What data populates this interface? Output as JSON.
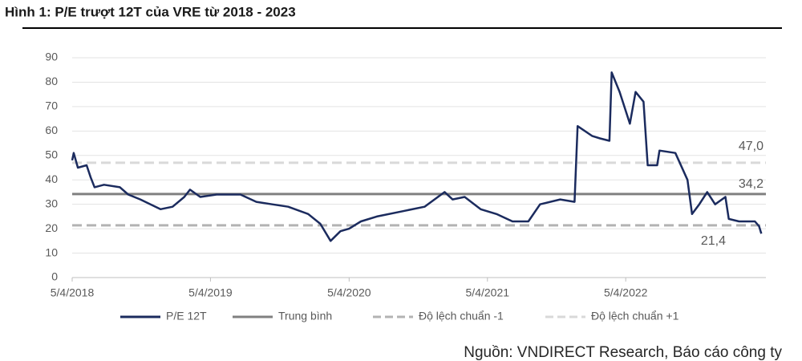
{
  "chart_data": {
    "type": "line",
    "title": "Hình 1: P/E trượt 12T của VRE từ 2018 - 2023",
    "source": "Nguồn: VNDIRECT Research, Báo cáo công ty",
    "x": [
      "2018-04-05",
      "2018-04-09",
      "2018-04-20",
      "2018-05-13",
      "2018-05-24",
      "2018-06-03",
      "2018-06-28",
      "2018-08-09",
      "2018-08-31",
      "2018-10-02",
      "2018-11-24",
      "2018-12-26",
      "2019-01-26",
      "2019-02-10",
      "2019-03-09",
      "2019-04-21",
      "2019-06-23",
      "2019-08-04",
      "2019-09-15",
      "2019-10-27",
      "2019-12-19",
      "2020-01-20",
      "2020-02-16",
      "2020-03-13",
      "2020-04-05",
      "2020-05-06",
      "2020-06-17",
      "2020-08-19",
      "2020-10-21",
      "2020-12-13",
      "2021-01-03",
      "2021-02-04",
      "2021-03-18",
      "2021-04-29",
      "2021-06-10",
      "2021-07-22",
      "2021-08-22",
      "2021-10-14",
      "2021-11-21",
      "2021-11-29",
      "2022-01-06",
      "2022-01-27",
      "2022-02-21",
      "2022-02-27",
      "2022-03-20",
      "2022-04-16",
      "2022-05-01",
      "2022-05-22",
      "2022-06-02",
      "2022-06-27",
      "2022-07-03",
      "2022-08-14",
      "2022-09-15",
      "2022-09-27",
      "2022-10-16",
      "2022-11-06",
      "2022-11-27",
      "2022-12-24",
      "2023-01-02",
      "2023-01-29",
      "2023-03-12",
      "2023-03-23",
      "2023-03-29"
    ],
    "series": [
      {
        "name": "P/E 12T",
        "color": "#1b2b5e",
        "values": [
          48,
          51,
          45,
          46,
          41,
          37,
          38,
          37,
          34,
          32,
          28,
          29,
          33,
          36,
          33,
          34,
          34,
          31,
          30,
          29,
          26,
          22,
          15,
          19,
          20,
          23,
          25,
          27,
          29,
          35,
          32,
          33,
          28,
          26,
          23,
          23,
          30,
          32,
          31,
          62,
          58,
          57,
          56,
          84,
          76,
          63,
          76,
          72,
          46,
          46,
          52,
          51,
          40,
          26,
          30,
          35,
          30,
          33,
          24,
          23,
          23,
          21,
          18
        ]
      }
    ],
    "reference_lines": [
      {
        "name": "Trung bình",
        "value": 34.2,
        "value_label": "34,2",
        "color": "#808080",
        "dashed": false
      },
      {
        "name": "Độ lệch chuẩn -1",
        "value": 21.4,
        "value_label": "21,4",
        "color": "#b3b3b3",
        "dashed": true
      },
      {
        "name": "Độ lệch chuẩn +1",
        "value": 47.0,
        "value_label": "47,0",
        "color": "#d9d9d9",
        "dashed": true
      }
    ],
    "xlim": [
      "2018-04-05",
      "2023-04-10"
    ],
    "xticks": [
      {
        "value": "2018-04-05",
        "label": "5/4/2018"
      },
      {
        "value": "2019-04-05",
        "label": "5/4/2019"
      },
      {
        "value": "2020-04-05",
        "label": "5/4/2020"
      },
      {
        "value": "2021-04-05",
        "label": "5/4/2021"
      },
      {
        "value": "2022-04-05",
        "label": "5/4/2022"
      }
    ],
    "ylim": [
      0,
      90
    ],
    "yticks": [
      0,
      10,
      20,
      30,
      40,
      50,
      60,
      70,
      80,
      90
    ],
    "grid": true
  }
}
